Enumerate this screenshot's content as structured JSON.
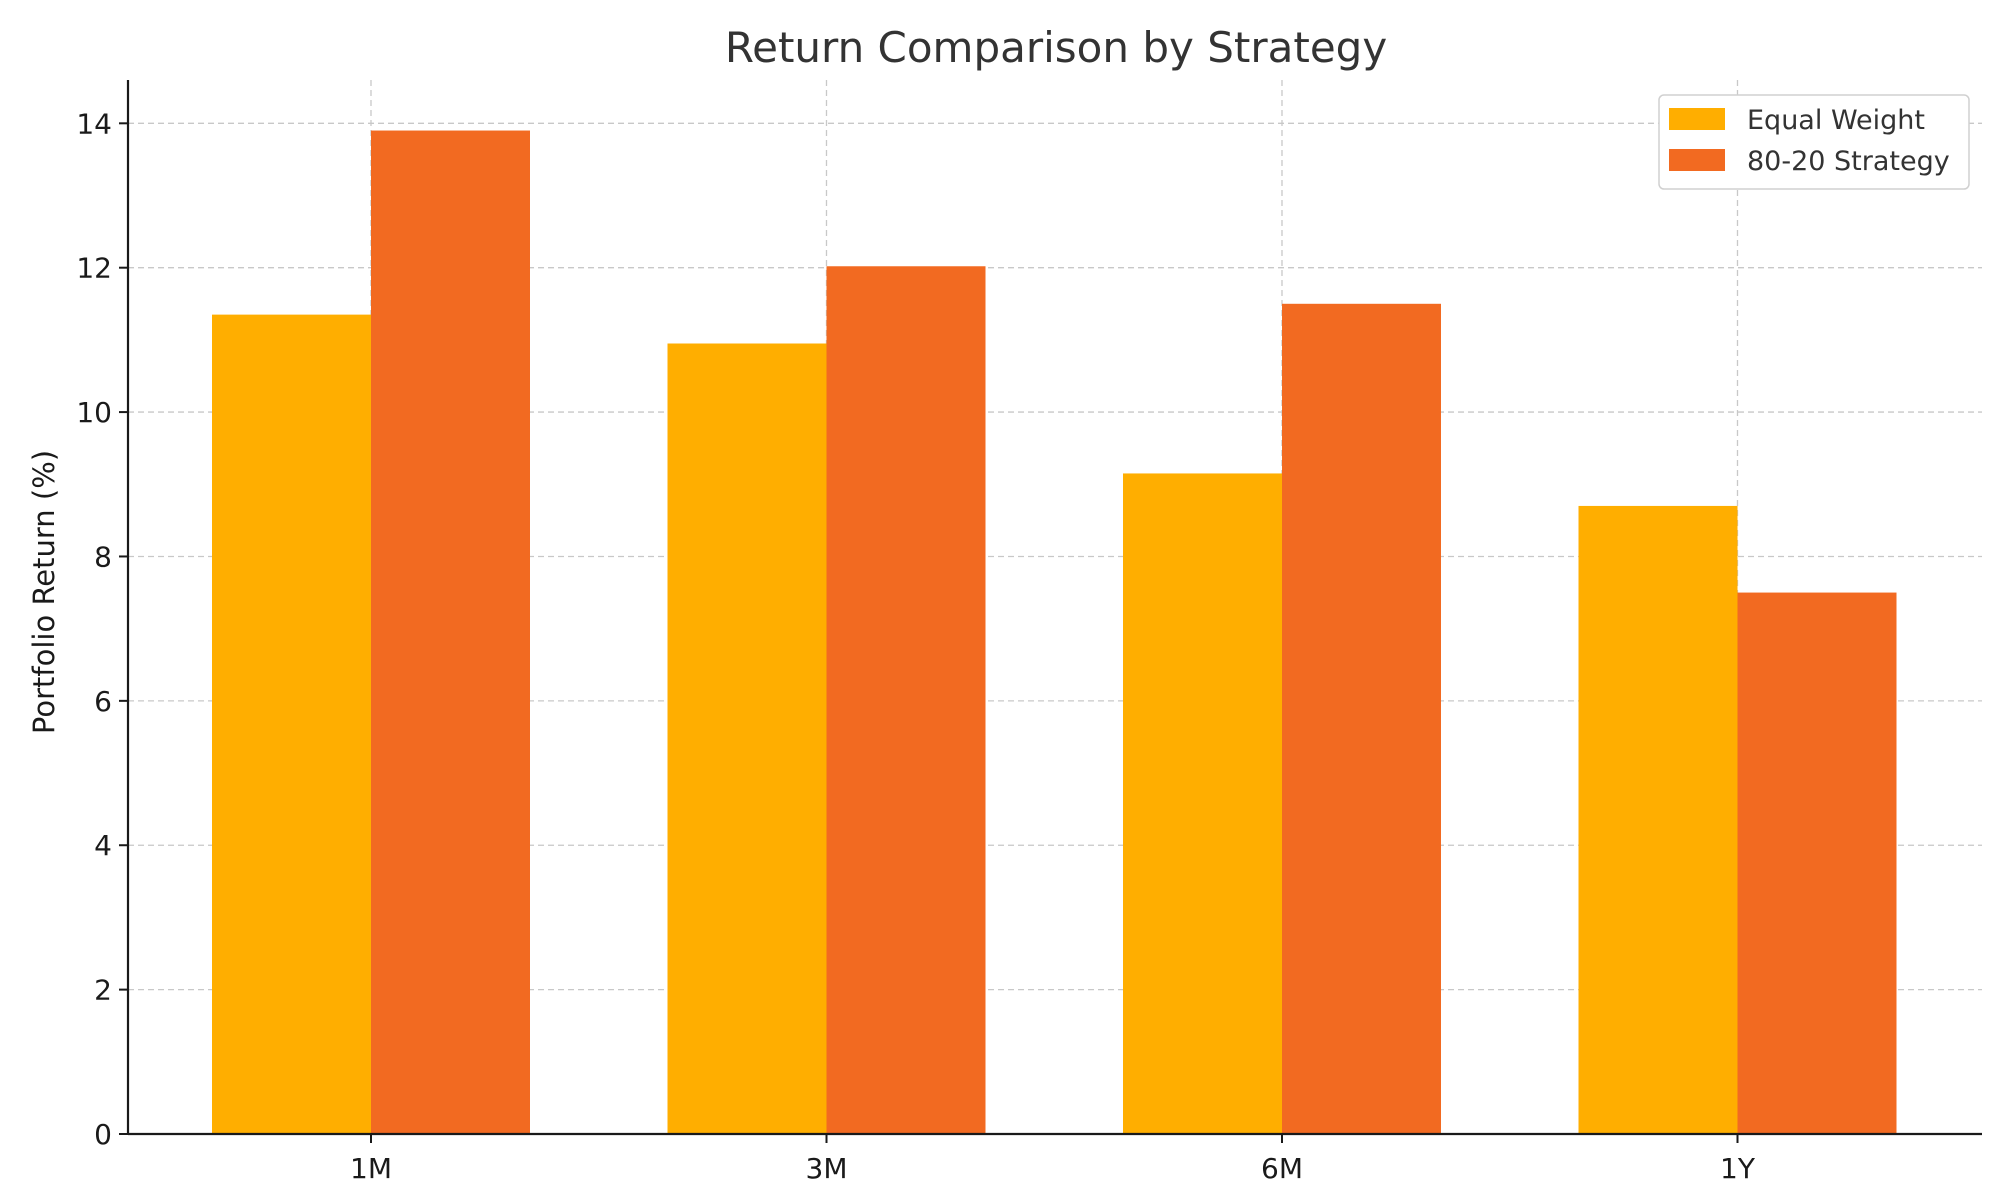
{
  "chart_data": {
    "type": "bar",
    "title": "Return Comparison by Strategy",
    "xlabel": "",
    "ylabel": "Portfolio Return (%)",
    "categories": [
      "1M",
      "3M",
      "6M",
      "1Y"
    ],
    "series": [
      {
        "name": "Equal Weight",
        "color": "#FFAE00",
        "values": [
          11.35,
          10.95,
          9.15,
          8.7
        ]
      },
      {
        "name": "80-20 Strategy",
        "color": "#F26A21",
        "values": [
          13.9,
          12.02,
          11.5,
          7.5
        ]
      }
    ],
    "ylim": [
      0,
      14.6
    ],
    "yticks": [
      0,
      2,
      4,
      6,
      8,
      10,
      12,
      14
    ],
    "grid": true,
    "legend_position": "top-right"
  }
}
